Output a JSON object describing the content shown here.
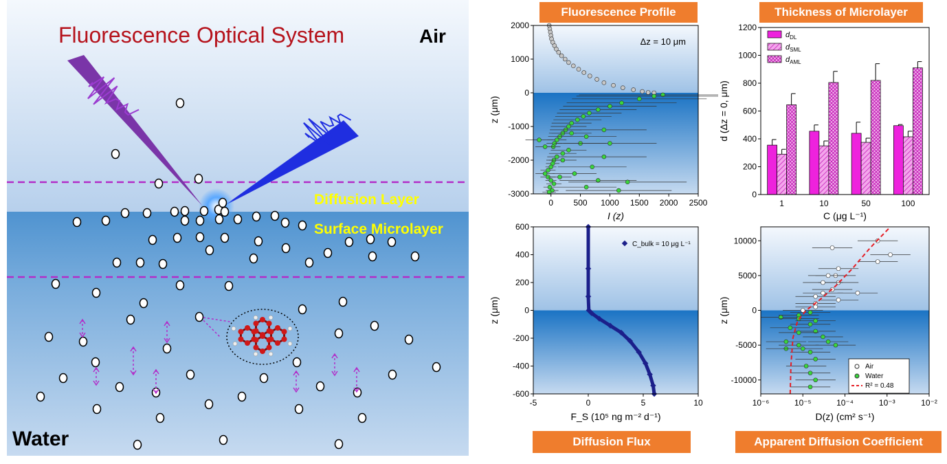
{
  "colors": {
    "banner": "#ef7d2d",
    "title_red": "#b5121b",
    "label_yellow": "#ffff00",
    "dash_purple": "#b22cc8",
    "air_top": "#f4f8fd",
    "water": "#5b9bd4"
  },
  "schematic": {
    "title": "Fluorescence Optical System",
    "air_label": "Air",
    "water_label": "Water",
    "diffusion_layer": "Diffusion Layer",
    "surface_microlayer": "Surface Microlayer"
  },
  "banners": {
    "profile": "Fluorescence Profile",
    "thickness": "Thickness of Microlayer",
    "flux": "Diffusion Flux",
    "coef": "Apparent Diffusion Coefficient"
  },
  "chart_data": [
    {
      "id": "profile",
      "type": "scatter",
      "title": "Fluorescence Profile",
      "xlabel": "I (z)",
      "ylabel": "z (μm)",
      "annotation": "Δz = 10 μm",
      "xlim": [
        -300,
        2500
      ],
      "ylim": [
        -3000,
        2000
      ],
      "xticks": [
        "0",
        "500",
        "1000",
        "1500",
        "2000",
        "2500"
      ],
      "yticks": [
        "2000",
        "1000",
        "0",
        "-1000",
        "-2000",
        "-3000"
      ],
      "series": [
        {
          "phase": "air",
          "color": "#c8c8c8",
          "points": [
            [
              -30,
              2000
            ],
            [
              -20,
              1900
            ],
            [
              -10,
              1800
            ],
            [
              0,
              1700
            ],
            [
              10,
              1600
            ],
            [
              30,
              1500
            ],
            [
              60,
              1400
            ],
            [
              90,
              1300
            ],
            [
              130,
              1200
            ],
            [
              180,
              1100
            ],
            [
              240,
              1000
            ],
            [
              300,
              900
            ],
            [
              380,
              800
            ],
            [
              470,
              700
            ],
            [
              560,
              600
            ],
            [
              660,
              500
            ],
            [
              780,
              400
            ],
            [
              900,
              300
            ],
            [
              1060,
              220
            ],
            [
              1220,
              150
            ],
            [
              1400,
              90
            ],
            [
              1550,
              40
            ],
            [
              1650,
              10
            ],
            [
              1750,
              0
            ]
          ]
        },
        {
          "phase": "water",
          "color": "#39d53c",
          "points": [
            [
              1900,
              -60
            ],
            [
              1750,
              -100
            ],
            [
              1500,
              -180
            ],
            [
              1200,
              -300
            ],
            [
              1000,
              -400
            ],
            [
              800,
              -500
            ],
            [
              650,
              -600
            ],
            [
              550,
              -700
            ],
            [
              450,
              -800
            ],
            [
              350,
              -900
            ],
            [
              300,
              -1000
            ],
            [
              250,
              -1100
            ],
            [
              200,
              -1200
            ],
            [
              150,
              -1300
            ],
            [
              100,
              -1400
            ],
            [
              60,
              -1500
            ],
            [
              40,
              -1600
            ],
            [
              600,
              -1300
            ],
            [
              900,
              -1100
            ],
            [
              500,
              -1500
            ],
            [
              300,
              -1700
            ],
            [
              200,
              -1800
            ],
            [
              100,
              -1900
            ],
            [
              50,
              -2000
            ],
            [
              30,
              -2100
            ],
            [
              0,
              -2200
            ],
            [
              -50,
              -2300
            ],
            [
              -100,
              -2400
            ],
            [
              -50,
              -2500
            ],
            [
              0,
              -2600
            ],
            [
              50,
              -2700
            ],
            [
              -20,
              -2800
            ],
            [
              20,
              -2900
            ],
            [
              -30,
              -2950
            ],
            [
              700,
              -2200
            ],
            [
              900,
              -1900
            ],
            [
              1000,
              -1500
            ],
            [
              400,
              -2400
            ],
            [
              800,
              -2600
            ],
            [
              1300,
              -2650
            ],
            [
              1150,
              -2900
            ],
            [
              600,
              -2800
            ],
            [
              -200,
              -1400
            ],
            [
              -100,
              -1600
            ],
            [
              200,
              -2000
            ],
            [
              350,
              -1200
            ],
            [
              150,
              -2500
            ]
          ]
        }
      ]
    },
    {
      "id": "thickness",
      "type": "bar",
      "title": "Thickness of Microlayer",
      "xlabel": "C (μg L⁻¹)",
      "ylabel": "d (Δz = 0, μm)",
      "ylim": [
        0,
        1200
      ],
      "yticks": [
        "0",
        "200",
        "400",
        "600",
        "800",
        "1000",
        "1200"
      ],
      "categories": [
        "1",
        "10",
        "50",
        "100"
      ],
      "series": [
        {
          "name": "d",
          "sub": "DL",
          "color": "#ee22dd",
          "values": [
            355,
            455,
            440,
            495
          ],
          "errors": [
            40,
            45,
            80,
            8
          ]
        },
        {
          "name": "d",
          "sub": "SML",
          "color": "#f4a6ec",
          "values": [
            290,
            350,
            375,
            415
          ],
          "errors": [
            35,
            35,
            30,
            40
          ]
        },
        {
          "name": "d",
          "sub": "AML",
          "color": "#f0b8ea",
          "values": [
            645,
            805,
            820,
            910
          ],
          "errors": [
            80,
            80,
            120,
            45
          ]
        }
      ]
    },
    {
      "id": "flux",
      "type": "line",
      "title": "Diffusion Flux",
      "xlabel": "F_S (10⁵ ng m⁻² d⁻¹)",
      "ylabel": "z (μm)",
      "legend": "C_bulk = 10 μg L⁻¹",
      "xlim": [
        -5,
        10
      ],
      "ylim": [
        -600,
        600
      ],
      "xticks": [
        "-5",
        "0",
        "5",
        "10"
      ],
      "yticks": [
        "600",
        "400",
        "200",
        "0",
        "-200",
        "-400",
        "-600"
      ],
      "x": [
        0,
        0,
        0,
        0.05,
        0.3,
        1.0,
        2.0,
        3.0,
        3.8,
        4.6,
        5.2,
        5.6,
        5.9,
        6.0
      ],
      "y": [
        600,
        300,
        100,
        0,
        -20,
        -60,
        -110,
        -160,
        -220,
        -300,
        -380,
        -460,
        -540,
        -600
      ]
    },
    {
      "id": "coef",
      "type": "scatter",
      "title": "Apparent Diffusion Coefficient",
      "xlabel": "D(z) (cm² s⁻¹)",
      "ylabel": "z (μm)",
      "xscale": "log",
      "xlim": [
        1e-06,
        0.01
      ],
      "ylim": [
        -12000,
        12000
      ],
      "xticks": [
        "10⁻⁶",
        "10⁻⁵",
        "10⁻⁴",
        "10⁻³",
        "10⁻²"
      ],
      "yticks": [
        "10000",
        "5000",
        "0",
        "-5000",
        "-10000"
      ],
      "legend": [
        "Air",
        "Water",
        "R² = 0.48"
      ],
      "series": [
        {
          "name": "Air",
          "color": "#ffffff",
          "points": [
            [
              0.0006,
              10000
            ],
            [
              0.0012,
              8000
            ],
            [
              0.0006,
              7000
            ],
            [
              5e-05,
              9000
            ],
            [
              7e-05,
              6000
            ],
            [
              6e-05,
              5000
            ],
            [
              4e-05,
              5000
            ],
            [
              7e-05,
              4000
            ],
            [
              3e-05,
              4000
            ],
            [
              5e-05,
              3000
            ],
            [
              3e-05,
              2500
            ],
            [
              0.0002,
              2500
            ],
            [
              2e-05,
              2000
            ],
            [
              7e-05,
              1500
            ],
            [
              2e-05,
              1000
            ],
            [
              2e-05,
              500
            ],
            [
              1e-05,
              0
            ]
          ]
        },
        {
          "name": "Water",
          "color": "#39d53c",
          "points": [
            [
              1.5e-05,
              -300
            ],
            [
              8e-06,
              -700
            ],
            [
              3e-06,
              -1000
            ],
            [
              8e-06,
              -1200
            ],
            [
              2e-05,
              -1500
            ],
            [
              1.5e-05,
              -2000
            ],
            [
              5e-06,
              -2500
            ],
            [
              2e-05,
              -3000
            ],
            [
              8e-06,
              -3200
            ],
            [
              3e-05,
              -3800
            ],
            [
              4e-06,
              -4500
            ],
            [
              4e-05,
              -4500
            ],
            [
              8e-06,
              -5000
            ],
            [
              6e-05,
              -5000
            ],
            [
              4e-06,
              -5500
            ],
            [
              1e-05,
              -5500
            ],
            [
              1.5e-05,
              -6000
            ],
            [
              2e-05,
              -7000
            ],
            [
              1.2e-05,
              -8000
            ],
            [
              1.5e-05,
              -9000
            ],
            [
              2e-05,
              -10000
            ],
            [
              1.5e-05,
              -11000
            ]
          ]
        },
        {
          "name": "fit",
          "color": "#e51c23",
          "dash": true,
          "points": [
            [
              5e-06,
              -12000
            ],
            [
              5.2e-06,
              -8000
            ],
            [
              5.8e-06,
              -4000
            ],
            [
              7.5e-06,
              -1500
            ],
            [
              1.2e-05,
              0
            ],
            [
              2.5e-05,
              1500
            ],
            [
              6e-05,
              3500
            ],
            [
              0.00015,
              6000
            ],
            [
              0.0004,
              9000
            ],
            [
              0.0012,
              12000
            ]
          ]
        }
      ]
    }
  ]
}
